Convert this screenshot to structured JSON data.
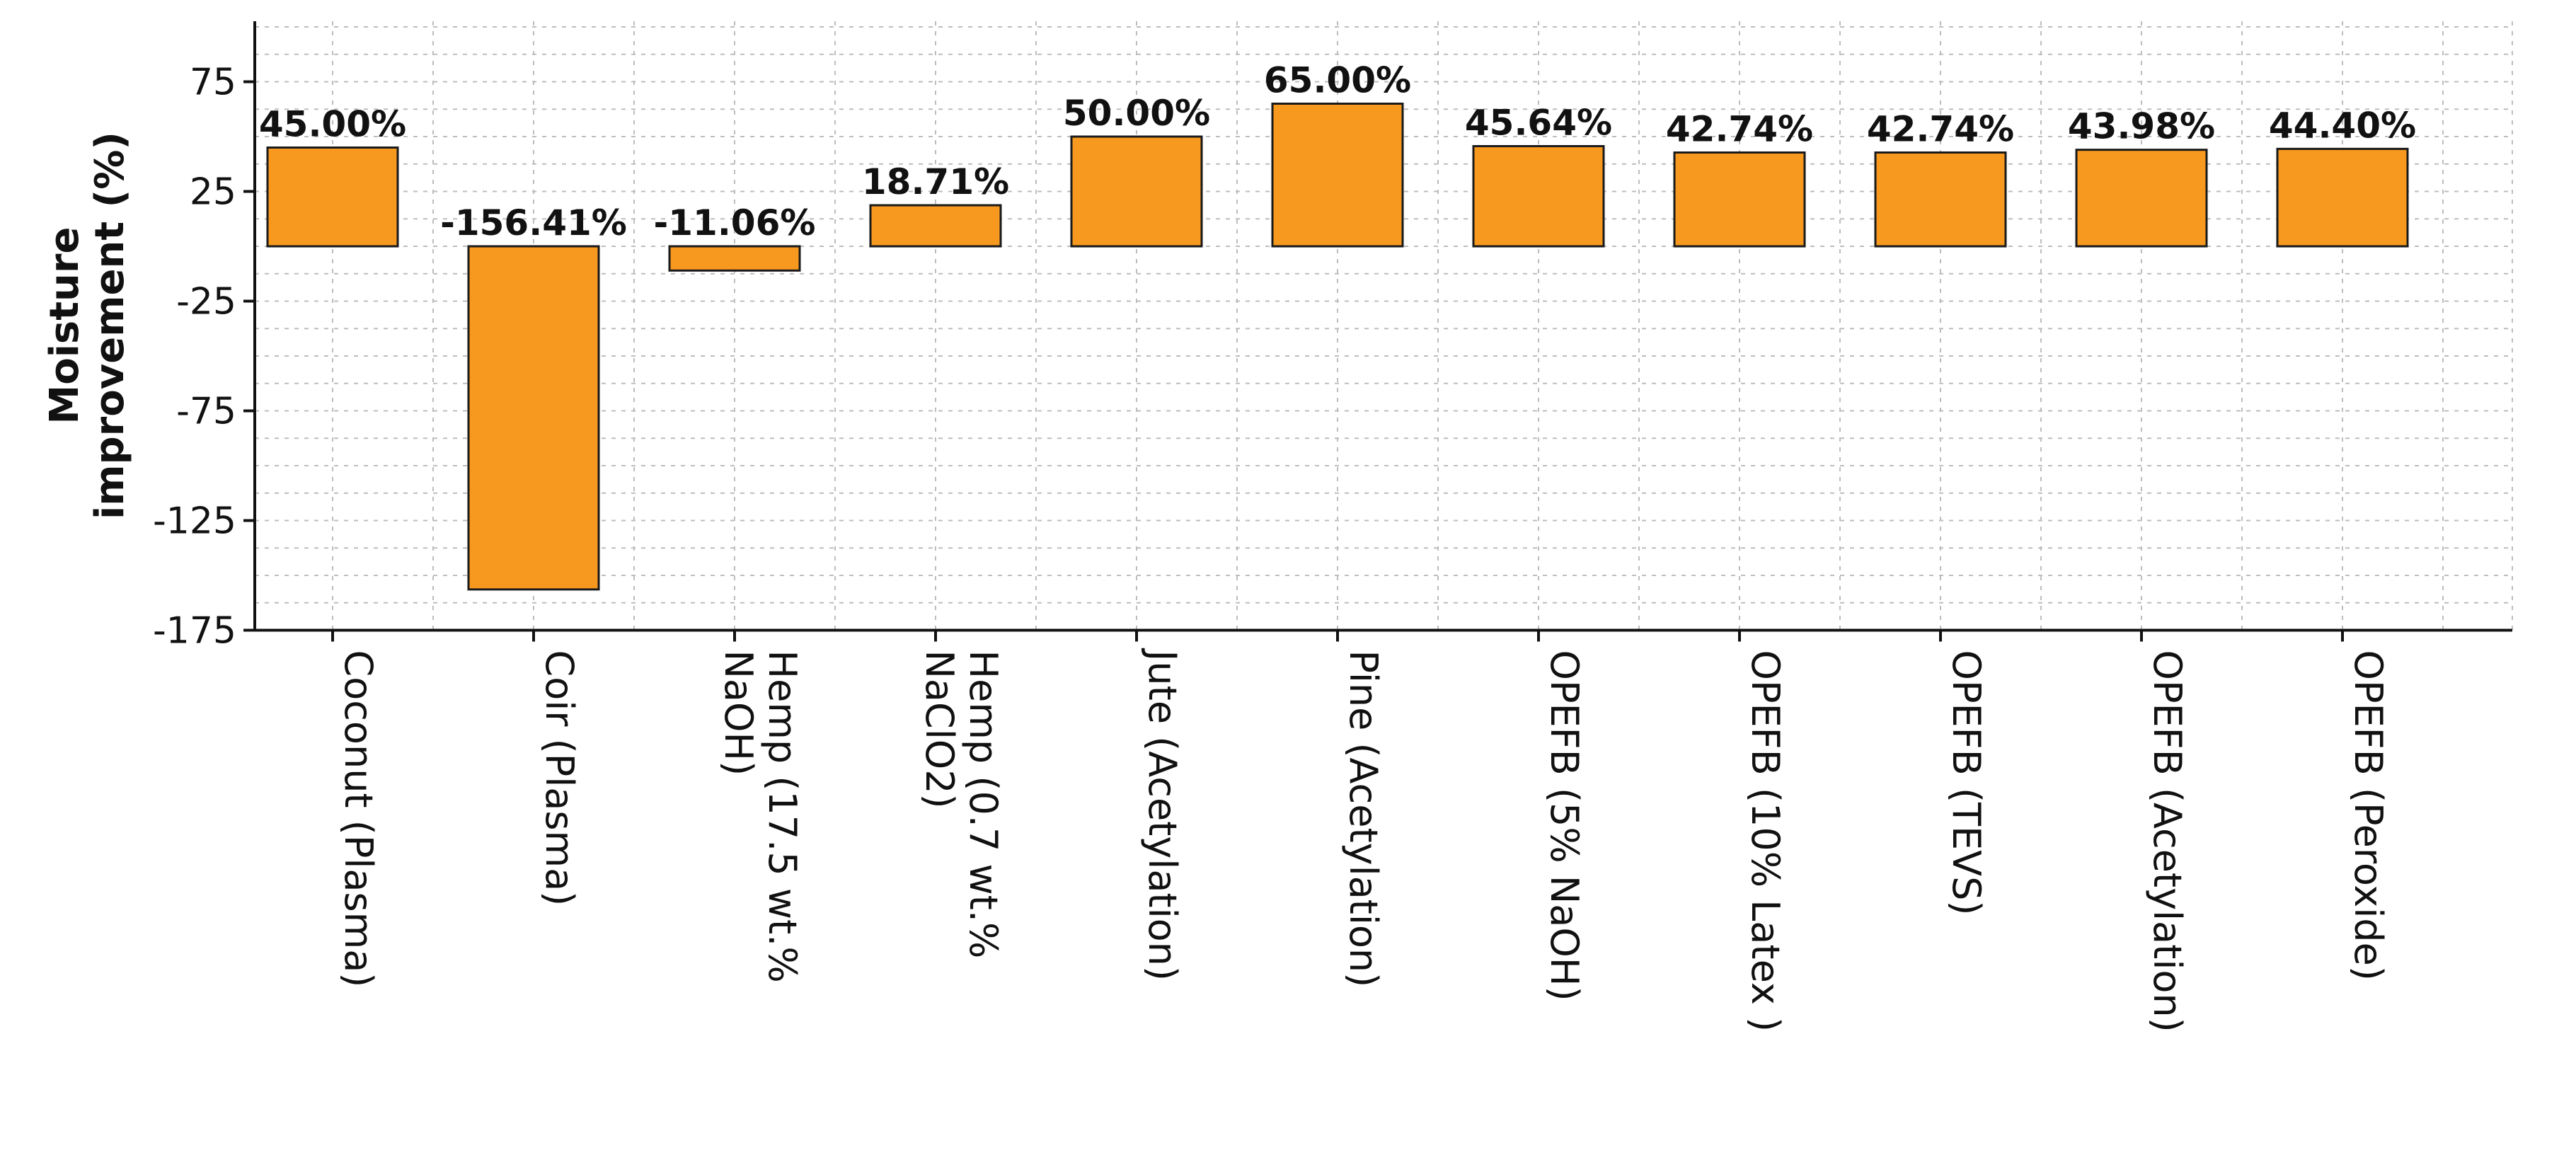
{
  "colors": {
    "bar_fill": "#F7991F",
    "bar_stroke": "#1a1a1a",
    "grid": "#bdbdbd",
    "axis": "#111111",
    "text": "#111111"
  },
  "chart_data": {
    "type": "bar",
    "title": "",
    "xlabel": "",
    "ylabel": "Moisture improvement (%)",
    "ylim": [
      -175,
      100
    ],
    "yticks": [
      75,
      25,
      -25,
      -75,
      -125,
      -175
    ],
    "grid": true,
    "legend": "none",
    "categories": [
      "Coconut (Plasma)",
      "Coir (Plasma)",
      "Hemp (17.5 wt.% NaOH)",
      "Hemp (0.7 wt.% NaClO2)",
      "Jute (Acetylation)",
      "Pine (Acetylation)",
      "OPEFB (5% NaOH)",
      "OPEFB (10% Latex )",
      "OPEFB (TEVS)",
      "OPEFB (Acetylation)",
      "OPEFB (Peroxide)"
    ],
    "category_lines": [
      [
        "Coconut (Plasma)"
      ],
      [
        "Coir (Plasma)"
      ],
      [
        "Hemp (17.5 wt.%",
        "NaOH)"
      ],
      [
        "Hemp (0.7 wt.%",
        "NaClO2)"
      ],
      [
        "Jute (Acetylation)"
      ],
      [
        "Pine (Acetylation)"
      ],
      [
        "OPEFB (5% NaOH)"
      ],
      [
        "OPEFB (10% Latex )"
      ],
      [
        "OPEFB (TEVS)"
      ],
      [
        "OPEFB (Acetylation)"
      ],
      [
        "OPEFB (Peroxide)"
      ]
    ],
    "values": [
      45.0,
      -156.41,
      -11.06,
      18.71,
      50.0,
      65.0,
      45.64,
      42.74,
      42.74,
      43.98,
      44.4
    ],
    "data_labels": [
      "45.00%",
      "-156.41%",
      "-11.06%",
      "18.71%",
      "50.00%",
      "65.00%",
      "45.64%",
      "42.74%",
      "42.74%",
      "43.98%",
      "44.40%"
    ]
  }
}
